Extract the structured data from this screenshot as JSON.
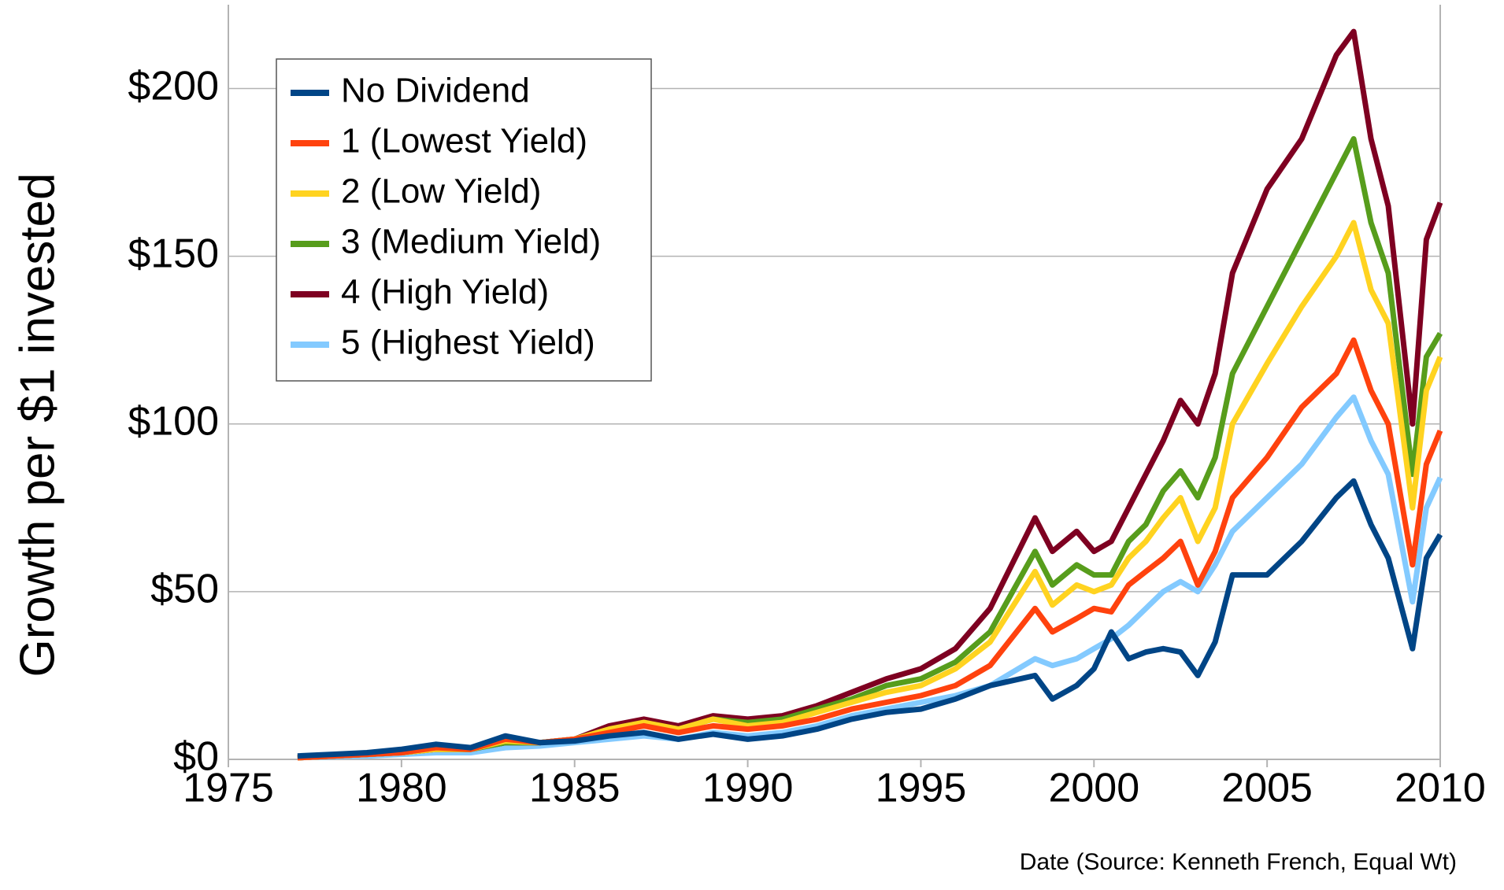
{
  "chart_data": {
    "type": "line",
    "y_label": "Growth per $1 invested",
    "x_label": "Date (Source: Kenneth French, Equal Wt)",
    "x": [
      1977,
      1978,
      1979,
      1980,
      1981,
      1982,
      1983,
      1984,
      1985,
      1986,
      1987,
      1988,
      1989,
      1990,
      1991,
      1992,
      1993,
      1994,
      1995,
      1996,
      1997,
      1998.3,
      1998.8,
      1999.5,
      2000,
      2000.5,
      2001,
      2001.5,
      2002,
      2002.5,
      2003,
      2003.5,
      2004,
      2005,
      2006,
      2007,
      2007.5,
      2008,
      2008.5,
      2009.2,
      2009.6,
      2010
    ],
    "series": [
      {
        "name": "No Dividend",
        "color": "#004586",
        "values": [
          1,
          1.5,
          2,
          3,
          4.5,
          3.5,
          7,
          5,
          5.5,
          7,
          8,
          6,
          7.5,
          6,
          7,
          9,
          12,
          14,
          15,
          18,
          22,
          25,
          18,
          22,
          27,
          38,
          30,
          32,
          33,
          32,
          25,
          35,
          55,
          55,
          65,
          78,
          83,
          70,
          60,
          33,
          60,
          67
        ]
      },
      {
        "name": "1 (Lowest Yield)",
        "color": "#ff420e",
        "values": [
          0.5,
          1,
          1.5,
          2,
          3.5,
          3,
          6,
          5,
          6,
          8,
          10,
          8,
          10,
          9,
          10,
          12,
          15,
          17,
          19,
          22,
          28,
          45,
          38,
          42,
          45,
          44,
          52,
          56,
          60,
          65,
          52,
          62,
          78,
          90,
          105,
          115,
          125,
          110,
          100,
          58,
          88,
          98
        ]
      },
      {
        "name": "2 (Low Yield)",
        "color": "#ffd320",
        "values": [
          0.5,
          1,
          1.5,
          2,
          3,
          3,
          5.5,
          5,
          6,
          9,
          11,
          9,
          12,
          10,
          11,
          14,
          17,
          20,
          22,
          27,
          35,
          56,
          46,
          52,
          50,
          52,
          60,
          65,
          72,
          78,
          65,
          75,
          100,
          118,
          135,
          150,
          160,
          140,
          130,
          75,
          110,
          120
        ]
      },
      {
        "name": "3 (Medium Yield)",
        "color": "#579d1c",
        "values": [
          0.5,
          1,
          1.5,
          2,
          3,
          3,
          5,
          5,
          6,
          9,
          11,
          9,
          12,
          11,
          12,
          15,
          18,
          22,
          24,
          29,
          38,
          62,
          52,
          58,
          55,
          55,
          65,
          70,
          80,
          86,
          78,
          90,
          115,
          135,
          155,
          175,
          185,
          160,
          145,
          85,
          120,
          127
        ]
      },
      {
        "name": "4 (High Yield)",
        "color": "#7e0021",
        "values": [
          0.5,
          1,
          1.5,
          2,
          3,
          3,
          5,
          5,
          6,
          10,
          12,
          10,
          13,
          12,
          13,
          16,
          20,
          24,
          27,
          33,
          45,
          72,
          62,
          68,
          62,
          65,
          75,
          85,
          95,
          107,
          100,
          115,
          145,
          170,
          185,
          210,
          217,
          185,
          165,
          100,
          155,
          166
        ]
      },
      {
        "name": "5 (Highest Yield)",
        "color": "#83caff",
        "values": [
          0.5,
          0.8,
          1,
          1.5,
          2,
          2,
          3.5,
          4,
          5,
          6,
          7,
          6,
          8,
          7,
          8,
          10,
          13,
          15,
          17,
          19,
          22,
          30,
          28,
          30,
          33,
          36,
          40,
          45,
          50,
          53,
          50,
          58,
          68,
          78,
          88,
          102,
          108,
          95,
          85,
          47,
          75,
          84
        ]
      }
    ],
    "xlim": [
      1975,
      2010
    ],
    "xticks": [
      1975,
      1980,
      1985,
      1990,
      1995,
      2000,
      2005,
      2010
    ],
    "ylim": [
      0,
      225
    ],
    "yticks": [
      {
        "value": 0,
        "label": "$0"
      },
      {
        "value": 50,
        "label": "$50"
      },
      {
        "value": 100,
        "label": "$100"
      },
      {
        "value": 150,
        "label": "$150"
      },
      {
        "value": 200,
        "label": "$200"
      }
    ],
    "grid": true,
    "legend": "upper left"
  }
}
